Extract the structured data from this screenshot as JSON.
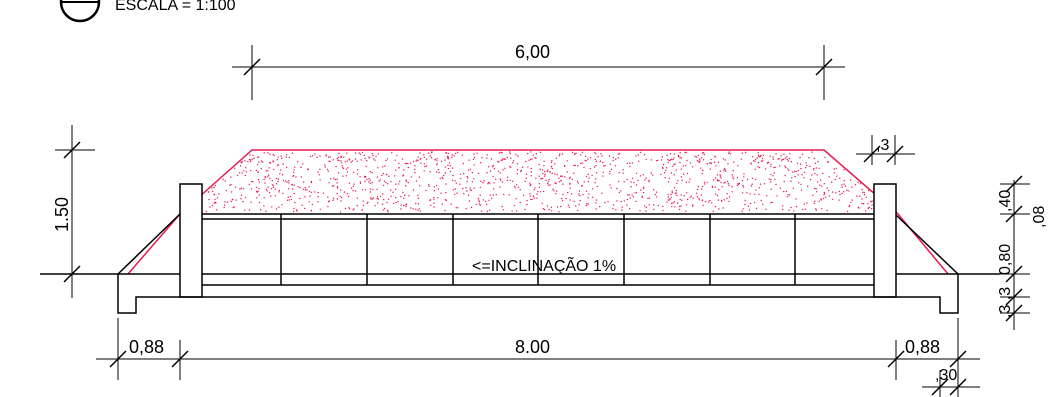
{
  "header": {
    "scale_label": "ESCALA = 1:100"
  },
  "dimensions": {
    "top_width": "6,00",
    "height_left": "1.50",
    "slope_offset": ",3",
    "dim_40": ",40",
    "dim_08": ",08",
    "dim_080": "0,80",
    "dim_3_3": ",3 ,3",
    "left_margin": "0,88",
    "bottom_width": "8.00",
    "right_margin": "0,88",
    "bottom_30": ",30"
  },
  "annotations": {
    "slope_note": "<=INCLINAÇÃO 1%"
  },
  "colors": {
    "line": "#000000",
    "fill_stipple": "#e8194f"
  }
}
